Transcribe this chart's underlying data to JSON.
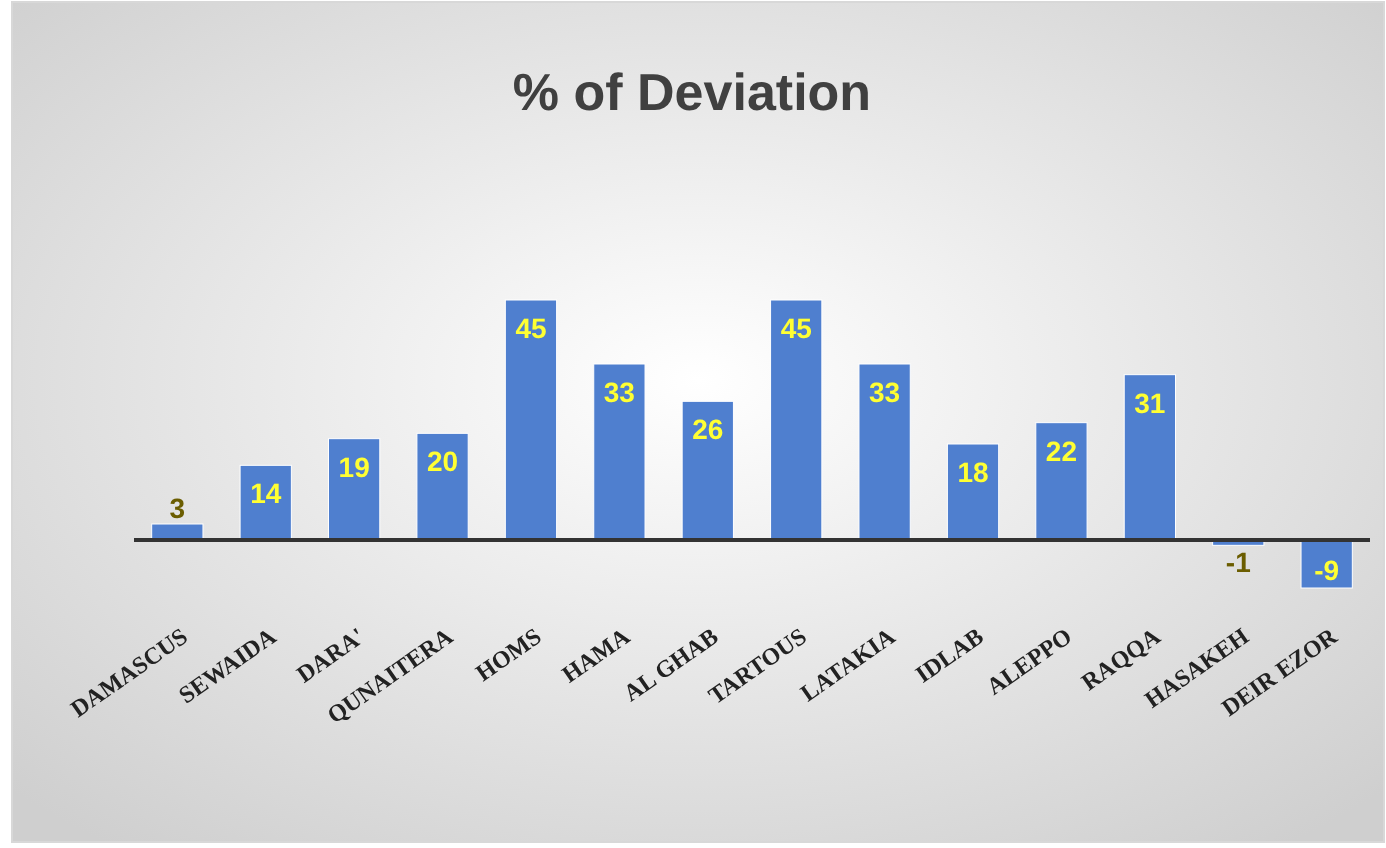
{
  "chart_data": {
    "type": "bar",
    "title": "% of Deviation",
    "categories": [
      "DAMASCUS",
      "SEWAIDA",
      "DARA'",
      "QUNAITERA",
      "HOMS",
      "HAMA",
      "AL GHAB",
      "TARTOUS",
      "LATAKIA",
      "IDLAB",
      "ALEPPO",
      "RAQQA",
      "HASAKEH",
      "DEIR EZOR"
    ],
    "values": [
      3,
      14,
      19,
      20,
      45,
      33,
      26,
      45,
      33,
      18,
      22,
      31,
      -1,
      -9
    ],
    "color": "#4f7fcf",
    "data_labels": true
  }
}
